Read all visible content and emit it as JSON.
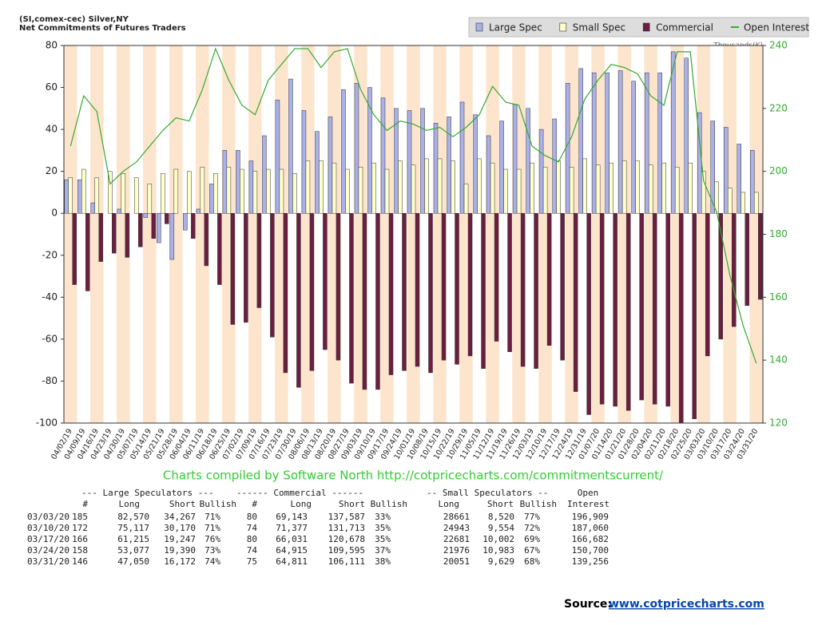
{
  "chart_data": {
    "type": "bar",
    "title": "(SI,comex-cec) Silver,NY",
    "subtitle": "Net Commitments of Futures Traders",
    "y2_label": "Thousands(K)",
    "annotation": "Charts compiled by Software North  http://cotpricecharts.com/commitmentscurrent/",
    "categories": [
      "04/02/19",
      "04/09/19",
      "04/16/19",
      "04/23/19",
      "04/30/19",
      "05/07/19",
      "05/14/19",
      "05/21/19",
      "05/28/19",
      "06/04/19",
      "06/11/19",
      "06/18/19",
      "06/25/19",
      "07/02/19",
      "07/09/19",
      "07/16/19",
      "07/23/19",
      "07/30/19",
      "08/06/19",
      "08/13/19",
      "08/20/19",
      "08/27/19",
      "09/03/19",
      "09/10/19",
      "09/17/19",
      "09/24/19",
      "10/01/19",
      "10/08/19",
      "10/15/19",
      "10/22/19",
      "10/29/19",
      "11/05/19",
      "11/12/19",
      "11/19/19",
      "11/26/19",
      "12/03/19",
      "12/10/19",
      "12/17/19",
      "12/24/19",
      "12/31/19",
      "01/07/20",
      "01/14/20",
      "01/21/20",
      "01/28/20",
      "02/04/20",
      "02/11/20",
      "02/18/20",
      "02/25/20",
      "03/03/20",
      "03/10/20",
      "03/17/20",
      "03/24/20",
      "03/31/20"
    ],
    "series": [
      {
        "name": "Large Spec",
        "color": "#aab0e8",
        "values": [
          16,
          16,
          5,
          0,
          2,
          0,
          -2,
          -14,
          -22,
          -8,
          2,
          14,
          30,
          30,
          25,
          37,
          54,
          64,
          49,
          39,
          46,
          59,
          62,
          60,
          55,
          50,
          49,
          50,
          43,
          46,
          53,
          47,
          37,
          44,
          52,
          50,
          40,
          45,
          62,
          69,
          67,
          67,
          68,
          63,
          67,
          67,
          77,
          74,
          48,
          44,
          41,
          33,
          30
        ]
      },
      {
        "name": "Small Spec",
        "color": "#ffffcc",
        "values": [
          17,
          21,
          17,
          20,
          19,
          17,
          14,
          19,
          21,
          20,
          22,
          19,
          22,
          21,
          20,
          21,
          21,
          19,
          25,
          25,
          24,
          21,
          22,
          24,
          21,
          25,
          23,
          26,
          26,
          25,
          14,
          26,
          24,
          21,
          21,
          24,
          22,
          25,
          22,
          26,
          23,
          24,
          25,
          25,
          23,
          24,
          22,
          24,
          20,
          15,
          12,
          10,
          10
        ]
      },
      {
        "name": "Commercial",
        "color": "#6b1e3f",
        "values": [
          -34,
          -37,
          -23,
          -19,
          -21,
          -16,
          -12,
          -5,
          0,
          -12,
          -25,
          -34,
          -53,
          -52,
          -45,
          -59,
          -76,
          -83,
          -75,
          -65,
          -70,
          -81,
          -84,
          -84,
          -77,
          -75,
          -73,
          -76,
          -70,
          -72,
          -68,
          -74,
          -61,
          -66,
          -73,
          -74,
          -63,
          -70,
          -85,
          -96,
          -91,
          -92,
          -94,
          -89,
          -91,
          -92,
          -100,
          -98,
          -68,
          -60,
          -54,
          -44,
          -41
        ]
      },
      {
        "name": "Open Interest",
        "color": "#33aa33",
        "type": "line",
        "axis": "y2",
        "values": [
          208,
          224,
          219,
          196,
          200,
          203,
          208,
          213,
          217,
          216,
          226,
          239,
          229,
          221,
          218,
          229,
          234,
          239,
          239,
          233,
          238,
          239,
          226,
          218,
          213,
          216,
          215,
          213,
          214,
          211,
          214,
          218,
          227,
          222,
          221,
          208,
          205,
          203,
          211,
          223,
          229,
          234,
          233,
          231,
          224,
          221,
          238,
          238,
          197,
          187,
          167,
          151,
          139
        ]
      }
    ],
    "ylim": [
      -100,
      80
    ],
    "yticks": [
      -100,
      -80,
      -60,
      -40,
      -20,
      0,
      20,
      40,
      60,
      80
    ],
    "y2lim": [
      120,
      240
    ],
    "y2ticks": [
      120,
      140,
      160,
      180,
      200,
      220,
      240
    ],
    "legend": "top-right"
  },
  "table": {
    "groups": [
      "--- Large Speculators ---",
      "------ Commercial ------",
      "-- Small Speculators --",
      "Open"
    ],
    "columns": [
      "#",
      "Long",
      "Short",
      "Bullish",
      "#",
      "Long",
      "Short",
      "Bullish",
      "Long",
      "Short",
      "Bullish",
      "Interest"
    ],
    "rows": [
      [
        "03/03/20",
        "185",
        "82,570",
        "34,267",
        "71%",
        "80",
        "69,143",
        "137,587",
        "33%",
        "28661",
        "8,520",
        "77%",
        "196,909"
      ],
      [
        "03/10/20",
        "172",
        "75,117",
        "30,170",
        "71%",
        "74",
        "71,377",
        "131,713",
        "35%",
        "24943",
        "9,554",
        "72%",
        "187,060"
      ],
      [
        "03/17/20",
        "166",
        "61,215",
        "19,247",
        "76%",
        "80",
        "66,031",
        "120,678",
        "35%",
        "22681",
        "10,002",
        "69%",
        "166,682"
      ],
      [
        "03/24/20",
        "158",
        "53,077",
        "19,390",
        "73%",
        "74",
        "64,915",
        "109,595",
        "37%",
        "21976",
        "10,983",
        "67%",
        "150,700"
      ],
      [
        "03/31/20",
        "146",
        "47,050",
        "16,172",
        "74%",
        "75",
        "64,811",
        "106,111",
        "38%",
        "20051",
        "9,629",
        "68%",
        "139,256"
      ]
    ]
  },
  "source": {
    "label": "Source:",
    "link": "www.cotpricecharts.com"
  }
}
